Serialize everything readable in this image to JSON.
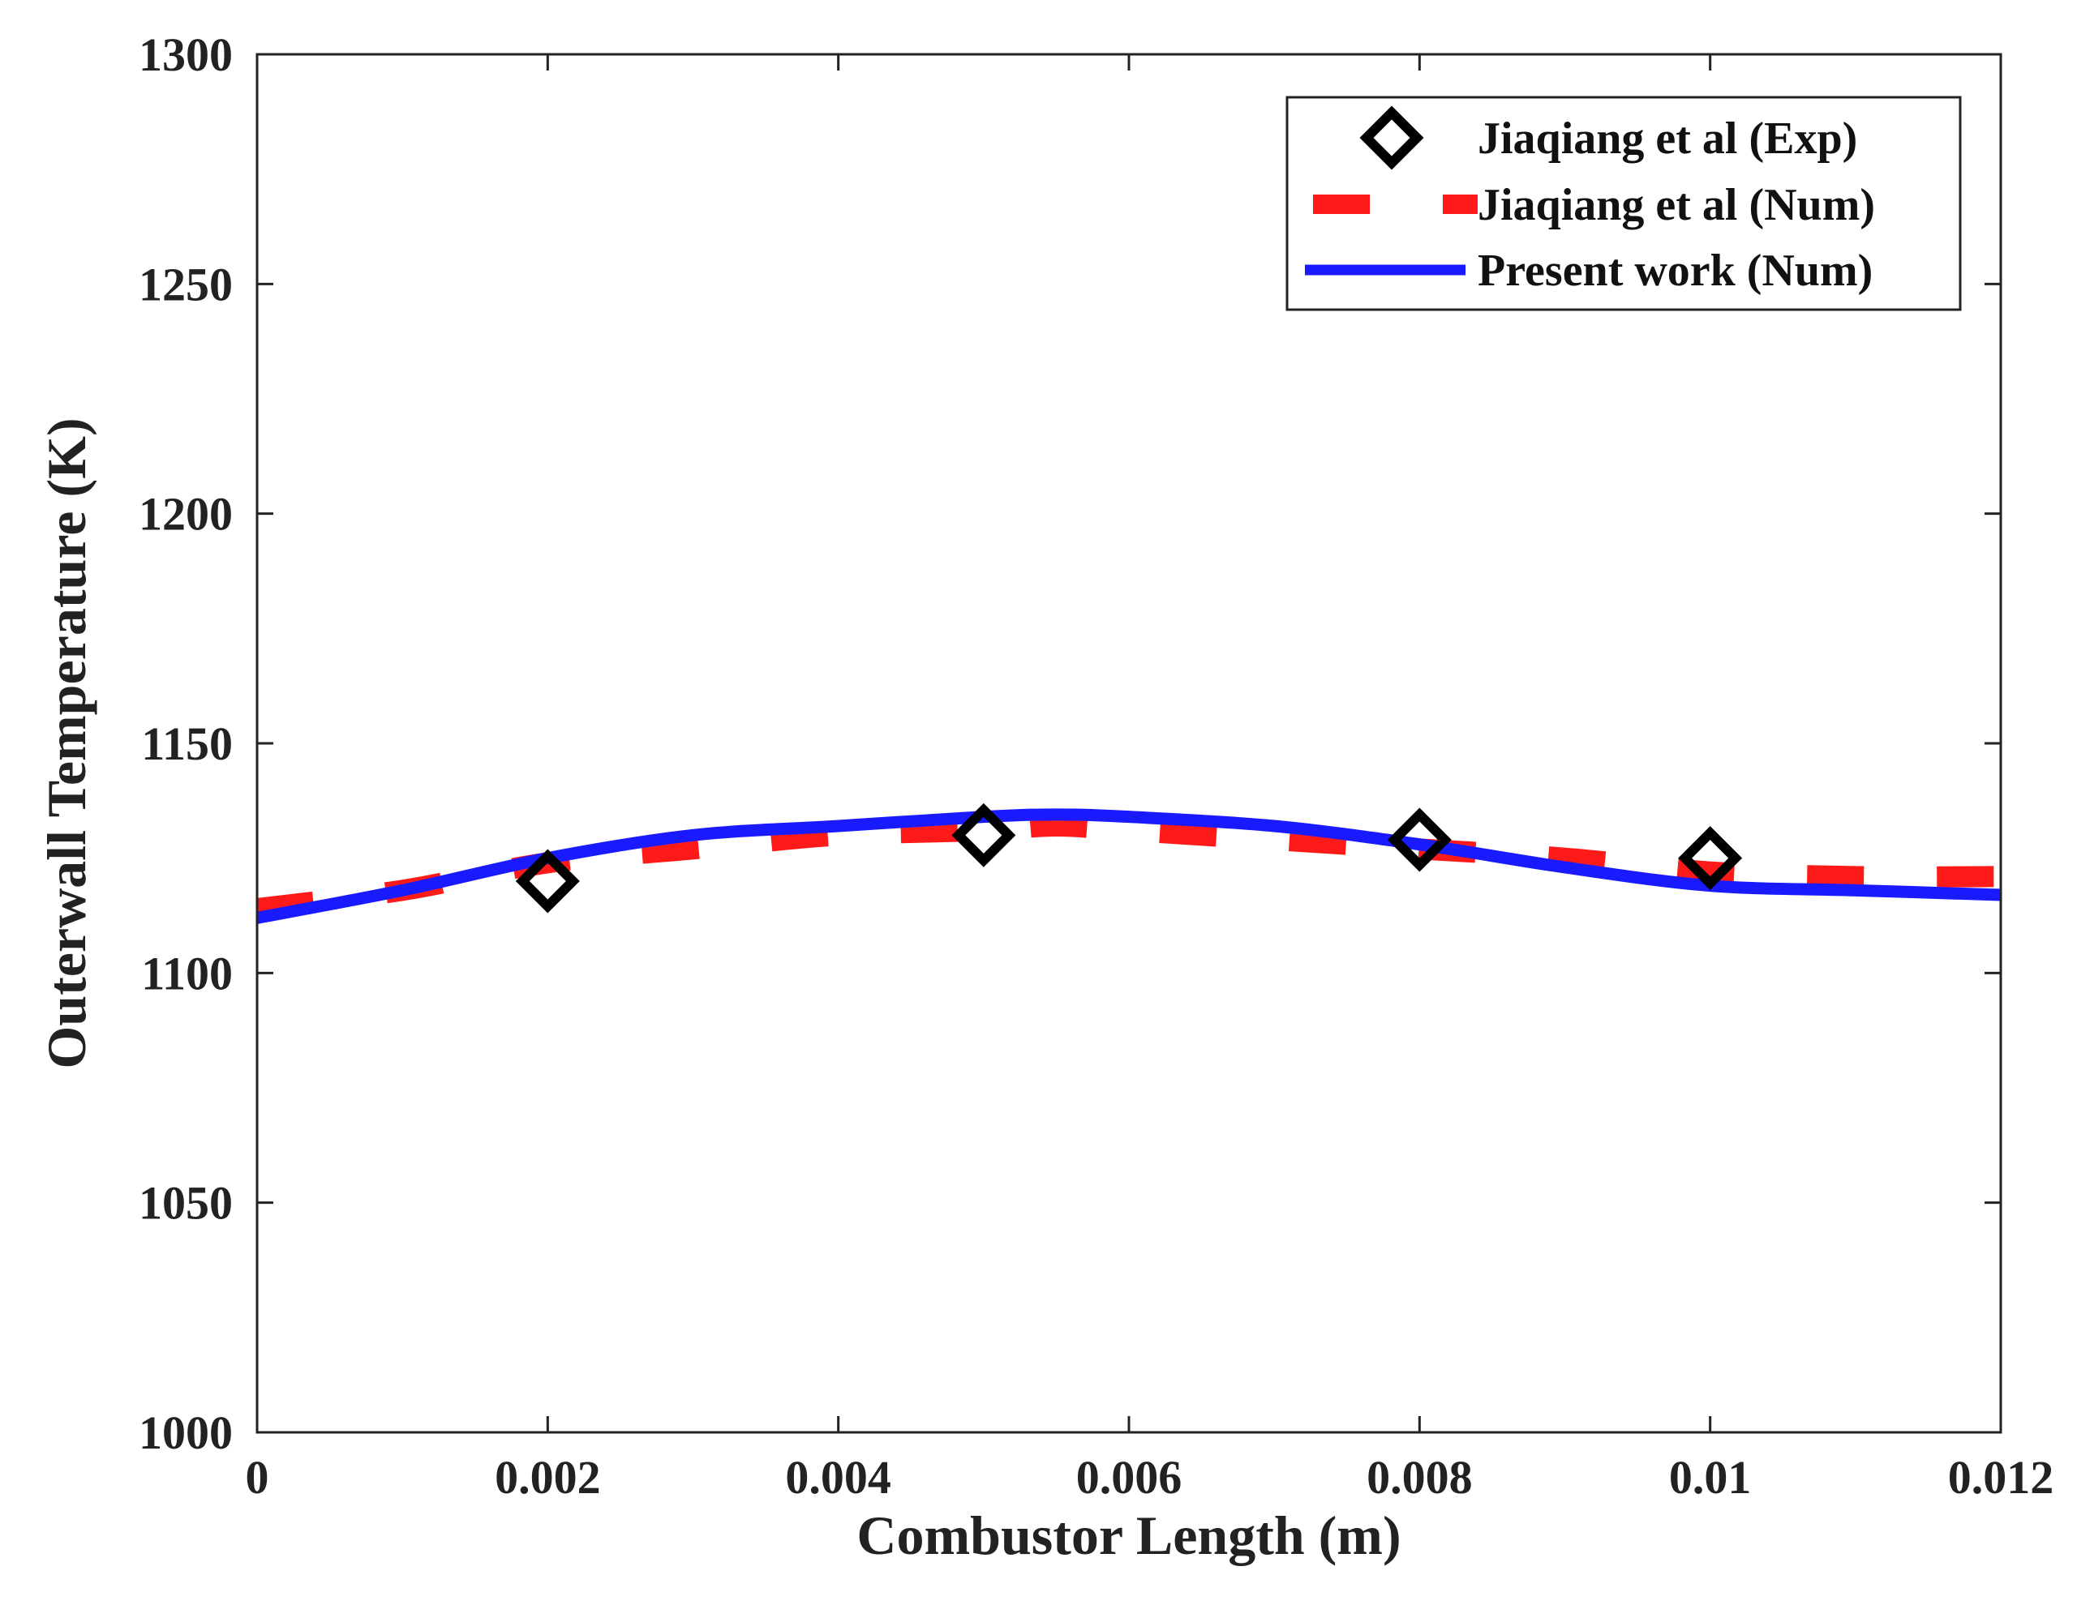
{
  "chart_data": {
    "type": "line",
    "title": "",
    "xlabel": "Combustor Length (m)",
    "ylabel": "Outerwall Temperature (K)",
    "xlim": [
      0,
      0.012
    ],
    "ylim": [
      1000,
      1300
    ],
    "xticks": [
      0,
      0.002,
      0.004,
      0.006,
      0.008,
      0.01,
      0.012
    ],
    "xtick_labels": [
      "0",
      "0.002",
      "0.004",
      "0.006",
      "0.008",
      "0.01",
      "0.012"
    ],
    "yticks": [
      1000,
      1050,
      1100,
      1150,
      1200,
      1250,
      1300
    ],
    "ytick_labels": [
      "1000",
      "1050",
      "1100",
      "1150",
      "1200",
      "1250",
      "1300"
    ],
    "grid": false,
    "legend_position": "top-right",
    "colors": {
      "exp": "#000000",
      "num_ref": "#ff1a1a",
      "present": "#1a1aff",
      "axis": "#222222"
    },
    "series": [
      {
        "name": "Jiaqiang et al (Exp)",
        "style": "diamond-markers",
        "x": [
          0.002,
          0.005,
          0.008,
          0.01
        ],
        "y": [
          1120,
          1130,
          1129,
          1125
        ]
      },
      {
        "name": "Jiaqiang et al (Num)",
        "style": "dashed",
        "x": [
          0,
          0.001,
          0.002,
          0.003,
          0.004,
          0.005,
          0.0055,
          0.006,
          0.007,
          0.008,
          0.009,
          0.01,
          0.011,
          0.012
        ],
        "y": [
          1114,
          1118,
          1124,
          1127,
          1130,
          1131,
          1132,
          1131,
          1129,
          1127,
          1125,
          1122,
          1121,
          1121
        ]
      },
      {
        "name": "Present work (Num)",
        "style": "solid",
        "x": [
          0,
          0.001,
          0.002,
          0.003,
          0.004,
          0.005,
          0.0055,
          0.006,
          0.007,
          0.008,
          0.009,
          0.01,
          0.011,
          0.012
        ],
        "y": [
          1112,
          1118,
          1125,
          1130,
          1132,
          1134,
          1134.5,
          1134,
          1132,
          1128,
          1123,
          1119,
          1118,
          1117
        ]
      }
    ]
  }
}
